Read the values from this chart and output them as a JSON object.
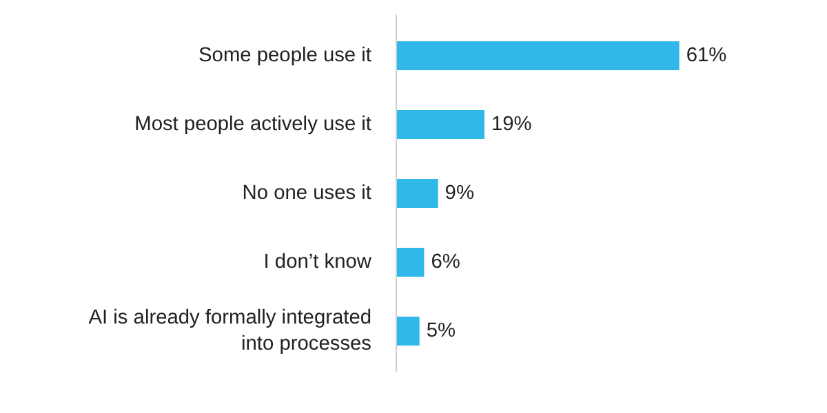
{
  "chart_data": {
    "type": "bar",
    "orientation": "horizontal",
    "categories": [
      "Some people use it",
      "Most people actively use it",
      "No one uses it",
      "I don’t know",
      "AI is already formally integrated\ninto processes"
    ],
    "values": [
      61,
      19,
      9,
      6,
      5
    ],
    "color": "#2fb8e9",
    "data_labels": true,
    "value_labels": [
      "61%",
      "19%",
      "9%",
      "6%",
      "5%"
    ],
    "tick_labels": "y",
    "grid": false
  }
}
